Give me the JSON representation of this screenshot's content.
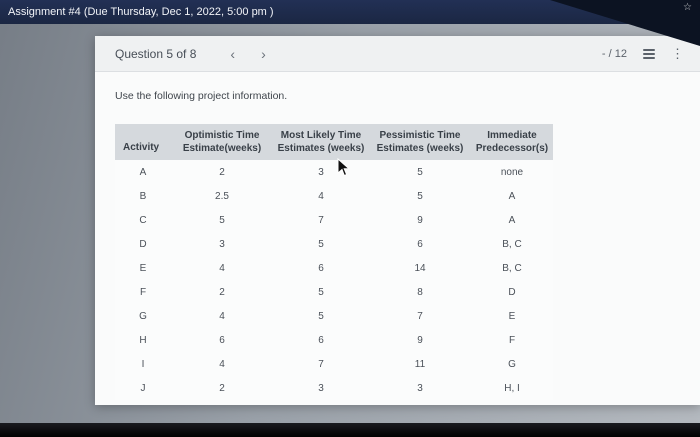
{
  "top_bar": {
    "title": "Assignment #4 (Due Thursday, Dec 1, 2022, 5:00 pm )"
  },
  "question_header": {
    "label": "Question 5 of 8",
    "score": "- / 12"
  },
  "icons": {
    "prev": "‹",
    "next": "›",
    "kebab": "⋮",
    "star": "☆"
  },
  "instruction": "Use the following project information.",
  "table": {
    "headers": [
      "Activity",
      "Optimistic Time\nEstimate(weeks)",
      "Most Likely Time\nEstimates (weeks)",
      "Pessimistic Time\nEstimates (weeks)",
      "Immediate\nPredecessor(s)"
    ],
    "rows": [
      [
        "A",
        "2",
        "3",
        "5",
        "none"
      ],
      [
        "B",
        "2.5",
        "4",
        "5",
        "A"
      ],
      [
        "C",
        "5",
        "7",
        "9",
        "A"
      ],
      [
        "D",
        "3",
        "5",
        "6",
        "B, C"
      ],
      [
        "E",
        "4",
        "6",
        "14",
        "B, C"
      ],
      [
        "F",
        "2",
        "5",
        "8",
        "D"
      ],
      [
        "G",
        "4",
        "5",
        "7",
        "E"
      ],
      [
        "H",
        "6",
        "6",
        "9",
        "F"
      ],
      [
        "I",
        "4",
        "7",
        "11",
        "G"
      ],
      [
        "J",
        "2",
        "3",
        "3",
        "H, I"
      ]
    ]
  }
}
